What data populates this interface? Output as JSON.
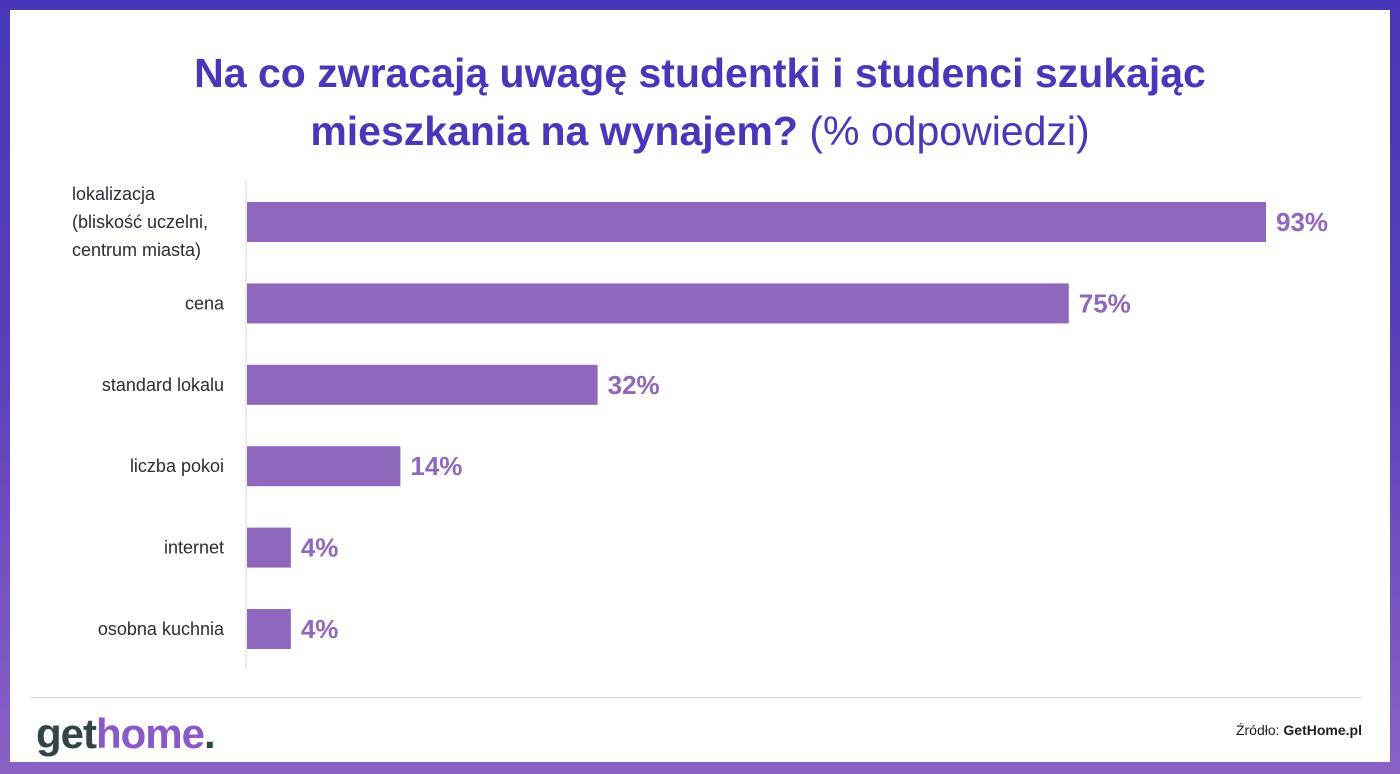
{
  "title": {
    "main": "Na co zwracają uwagę studentki i studenci szukając",
    "line2_bold": "mieszkania na wynajem?",
    "line2_regular": "(% odpowiedzi)"
  },
  "colors": {
    "bar": "#8f67bd",
    "value_text": "#8f67bd",
    "title": "#4a36b8",
    "frame": "#4737b8"
  },
  "chart_data": {
    "type": "bar",
    "orientation": "horizontal",
    "categories": [
      [
        "lokalizacja",
        "(bliskość uczelni,",
        "centrum miasta)"
      ],
      [
        "cena"
      ],
      [
        "standard lokalu"
      ],
      [
        "liczba pokoi"
      ],
      [
        "internet"
      ],
      [
        "osobna kuchnia"
      ]
    ],
    "values": [
      93,
      75,
      32,
      14,
      4,
      4
    ],
    "value_labels": [
      "93%",
      "75%",
      "32%",
      "14%",
      "4%",
      "4%"
    ],
    "unit": "%",
    "xlim": [
      0,
      93
    ],
    "grid": false,
    "legend": "none"
  },
  "footer": {
    "logo_part1": "get",
    "logo_part2": "home",
    "logo_part3": ".",
    "source_label": "Źródło:",
    "source_name": "GetHome.pl"
  }
}
